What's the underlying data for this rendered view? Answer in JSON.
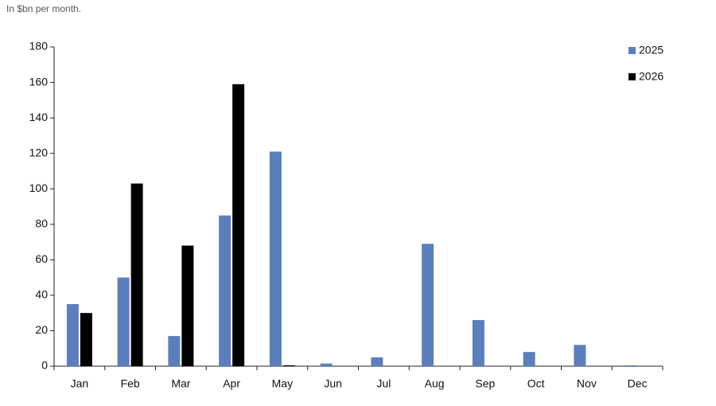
{
  "chart_data": {
    "type": "bar",
    "subtitle": "In $bn per month.",
    "categories": [
      "Jan",
      "Feb",
      "Mar",
      "Apr",
      "May",
      "Jun",
      "Jul",
      "Aug",
      "Sep",
      "Oct",
      "Nov",
      "Dec"
    ],
    "series": [
      {
        "name": "2025",
        "color": "#5b7fbd",
        "values": [
          35,
          50,
          17,
          85,
          121,
          1.5,
          5,
          69,
          26,
          8,
          12,
          0.5
        ]
      },
      {
        "name": "2026",
        "color": "#000000",
        "values": [
          30,
          103,
          68,
          159,
          0.5,
          null,
          null,
          null,
          null,
          null,
          null,
          null
        ]
      }
    ],
    "ylim": [
      0,
      180
    ],
    "yticks": [
      0,
      20,
      40,
      60,
      80,
      100,
      120,
      140,
      160,
      180
    ],
    "grid": false,
    "legend": "top-right"
  }
}
